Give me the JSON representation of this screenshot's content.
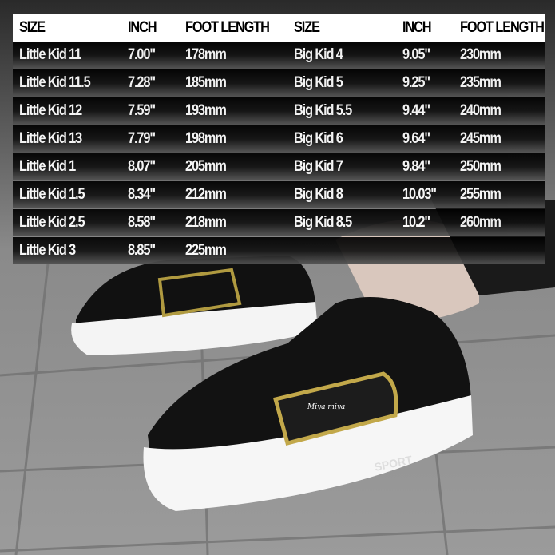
{
  "columns": [
    "SIZE",
    "INCH",
    "FOOT LENGTH",
    "SIZE",
    "INCH",
    "FOOT LENGTH"
  ],
  "rows": [
    [
      "Little Kid 11",
      "7.00\"",
      "178mm",
      "Big Kid 4",
      "9.05\"",
      "230mm"
    ],
    [
      "Little Kid 11.5",
      "7.28\"",
      "185mm",
      "Big Kid 5",
      "9.25\"",
      "235mm"
    ],
    [
      "Little Kid 12",
      "7.59\"",
      "193mm",
      "Big Kid 5.5",
      "9.44\"",
      "240mm"
    ],
    [
      "Little Kid 13",
      "7.79\"",
      "198mm",
      "Big Kid 6",
      "9.64\"",
      "245mm"
    ],
    [
      "Little Kid 1",
      "8.07\"",
      "205mm",
      "Big Kid 7",
      "9.84\"",
      "250mm"
    ],
    [
      "Little Kid 1.5",
      "8.34\"",
      "212mm",
      "Big Kid 8",
      "10.03\"",
      "255mm"
    ],
    [
      "Little Kid 2.5",
      "8.58\"",
      "218mm",
      "Big Kid 8.5",
      "10.2\"",
      "260mm"
    ],
    [
      "Little Kid 3",
      "8.85\"",
      "225mm",
      "",
      "",
      ""
    ]
  ],
  "product": {
    "brand_mark": "Miya miya",
    "sole_text": "SPORT"
  }
}
